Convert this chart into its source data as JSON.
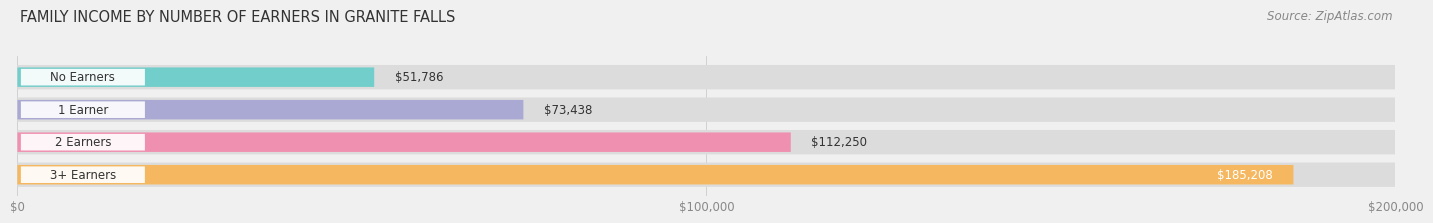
{
  "title": "FAMILY INCOME BY NUMBER OF EARNERS IN GRANITE FALLS",
  "source": "Source: ZipAtlas.com",
  "categories": [
    "No Earners",
    "1 Earner",
    "2 Earners",
    "3+ Earners"
  ],
  "values": [
    51786,
    73438,
    112250,
    185208
  ],
  "bar_colors": [
    "#72ceca",
    "#a9a9d4",
    "#f090b0",
    "#f5b860"
  ],
  "bar_labels": [
    "$51,786",
    "$73,438",
    "$112,250",
    "$185,208"
  ],
  "xlim": [
    0,
    200000
  ],
  "xticks": [
    0,
    100000,
    200000
  ],
  "xtick_labels": [
    "$0",
    "$100,000",
    "$200,000"
  ],
  "background_color": "#f0f0f0",
  "bar_bg_color": "#dcdcdc",
  "title_fontsize": 10.5,
  "label_fontsize": 8.5,
  "source_fontsize": 8.5,
  "value_fontsize": 8.5,
  "label_inside_threshold": 0.88
}
